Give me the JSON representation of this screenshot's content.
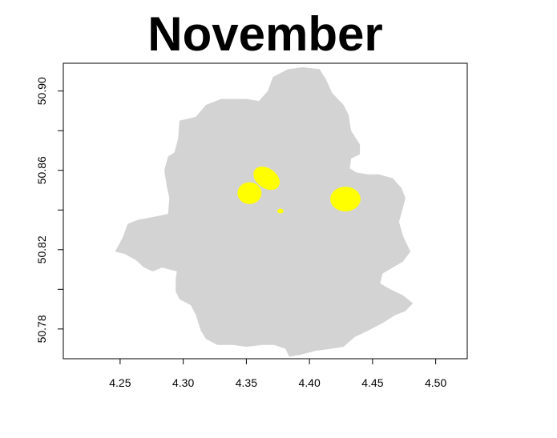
{
  "chart_data": {
    "type": "map",
    "title": "November",
    "xlabel": "",
    "ylabel": "",
    "xlim": [
      4.205,
      4.525
    ],
    "ylim": [
      50.765,
      50.914
    ],
    "x_ticks": [
      {
        "value": 4.25,
        "label": "4.25"
      },
      {
        "value": 4.3,
        "label": "4.30"
      },
      {
        "value": 4.35,
        "label": "4.35"
      },
      {
        "value": 4.4,
        "label": "4.40"
      },
      {
        "value": 4.45,
        "label": "4.45"
      },
      {
        "value": 4.5,
        "label": "4.50"
      }
    ],
    "y_ticks": [
      {
        "value": 50.78,
        "label": "50.78"
      },
      {
        "value": 50.8,
        "label": ""
      },
      {
        "value": 50.82,
        "label": "50.82"
      },
      {
        "value": 50.84,
        "label": ""
      },
      {
        "value": 50.86,
        "label": "50.86"
      },
      {
        "value": 50.88,
        "label": ""
      },
      {
        "value": 50.9,
        "label": "50.90"
      }
    ],
    "colors": {
      "region_fill": "#d3d3d3",
      "highlight_fill": "#ffff00",
      "axis": "#000000"
    },
    "region": [
      [
        4.246,
        50.819
      ],
      [
        4.252,
        50.826
      ],
      [
        4.256,
        50.833
      ],
      [
        4.264,
        50.835
      ],
      [
        4.28,
        50.837
      ],
      [
        4.288,
        50.838
      ],
      [
        4.289,
        50.846
      ],
      [
        4.287,
        50.852
      ],
      [
        4.285,
        50.86
      ],
      [
        4.288,
        50.867
      ],
      [
        4.293,
        50.869
      ],
      [
        4.296,
        50.876
      ],
      [
        4.297,
        50.885
      ],
      [
        4.31,
        50.887
      ],
      [
        4.318,
        50.893
      ],
      [
        4.33,
        50.896
      ],
      [
        4.35,
        50.896
      ],
      [
        4.36,
        50.895
      ],
      [
        4.367,
        50.9
      ],
      [
        4.371,
        50.907
      ],
      [
        4.383,
        50.911
      ],
      [
        4.395,
        50.912
      ],
      [
        4.408,
        50.911
      ],
      [
        4.413,
        50.906
      ],
      [
        4.418,
        50.899
      ],
      [
        4.427,
        50.893
      ],
      [
        4.431,
        50.888
      ],
      [
        4.433,
        50.88
      ],
      [
        4.44,
        50.873
      ],
      [
        4.44,
        50.868
      ],
      [
        4.433,
        50.866
      ],
      [
        4.432,
        50.861
      ],
      [
        4.437,
        50.859
      ],
      [
        4.446,
        50.858
      ],
      [
        4.455,
        50.858
      ],
      [
        4.466,
        50.856
      ],
      [
        4.473,
        50.851
      ],
      [
        4.476,
        50.846
      ],
      [
        4.474,
        50.841
      ],
      [
        4.471,
        50.834
      ],
      [
        4.474,
        50.827
      ],
      [
        4.48,
        50.819
      ],
      [
        4.474,
        50.814
      ],
      [
        4.466,
        50.811
      ],
      [
        4.458,
        50.808
      ],
      [
        4.456,
        50.803
      ],
      [
        4.464,
        50.8
      ],
      [
        4.474,
        50.797
      ],
      [
        4.482,
        50.793
      ],
      [
        4.476,
        50.789
      ],
      [
        4.468,
        50.787
      ],
      [
        4.458,
        50.783
      ],
      [
        4.446,
        50.779
      ],
      [
        4.436,
        50.776
      ],
      [
        4.427,
        50.771
      ],
      [
        4.417,
        50.77
      ],
      [
        4.405,
        50.769
      ],
      [
        4.393,
        50.767
      ],
      [
        4.384,
        50.766
      ],
      [
        4.381,
        50.77
      ],
      [
        4.372,
        50.772
      ],
      [
        4.363,
        50.772
      ],
      [
        4.35,
        50.771
      ],
      [
        4.339,
        50.772
      ],
      [
        4.327,
        50.772
      ],
      [
        4.318,
        50.775
      ],
      [
        4.314,
        50.779
      ],
      [
        4.31,
        50.787
      ],
      [
        4.306,
        50.792
      ],
      [
        4.297,
        50.795
      ],
      [
        4.294,
        50.799
      ],
      [
        4.294,
        50.805
      ],
      [
        4.295,
        50.809
      ],
      [
        4.283,
        50.811
      ],
      [
        4.276,
        50.809
      ],
      [
        4.269,
        50.811
      ],
      [
        4.262,
        50.815
      ],
      [
        4.253,
        50.818
      ]
    ],
    "highlights": [
      {
        "type": "ellipse",
        "cx": 4.3525,
        "cy": 50.8485,
        "rx": 0.0095,
        "ry": 0.0055
      },
      {
        "type": "ellipse",
        "cx": 4.4285,
        "cy": 50.8455,
        "rx": 0.012,
        "ry": 0.0062
      },
      {
        "type": "ellipse",
        "cx": 4.366,
        "cy": 50.856,
        "rx": 0.0115,
        "ry": 0.005,
        "rotate": 35
      },
      {
        "type": "ellipse",
        "cx": 4.377,
        "cy": 50.8395,
        "rx": 0.0025,
        "ry": 0.0012
      }
    ]
  }
}
